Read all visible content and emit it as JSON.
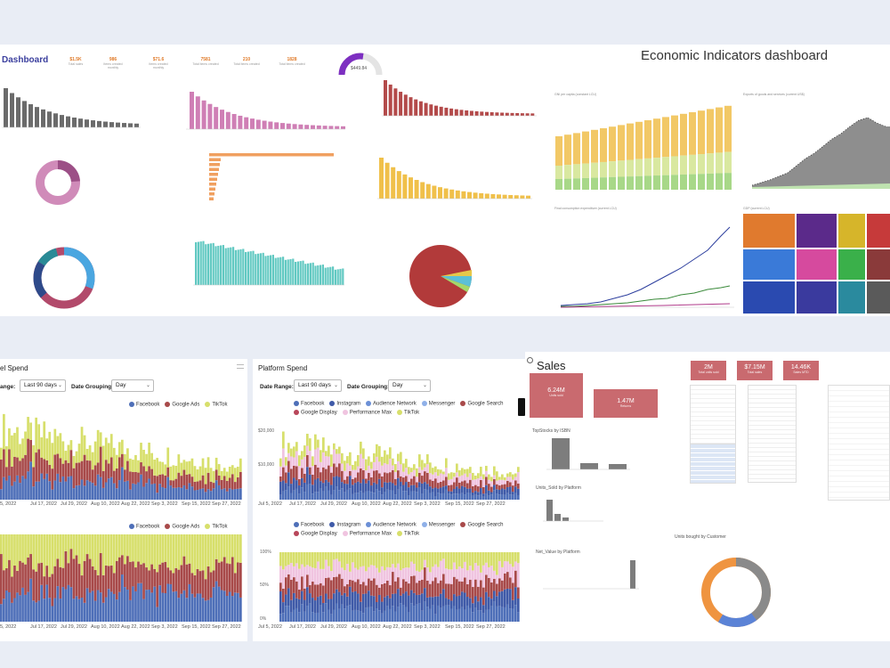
{
  "top_left": {
    "title": "Dashboard",
    "kpis": [
      {
        "value": "$1.5K",
        "label": "Total sales"
      },
      {
        "value": "986",
        "label": "Items created monthly"
      },
      {
        "value": "$71.6",
        "label": "Items created monthly"
      },
      {
        "value": "7581",
        "label": "Total items created"
      },
      {
        "value": "210",
        "label": "Total items created"
      },
      {
        "value": "1828",
        "label": "Total items created"
      }
    ],
    "gauge_label": "$449.84"
  },
  "top_right": {
    "title": "Economic Indicators dashboard",
    "chart_titles": [
      "GNI per capita (constant LCU)",
      "Exports of goods and services (current US$)",
      "Final consumption expenditure (current LCU)",
      "GDP (current LCU)"
    ]
  },
  "channel_spend": {
    "title": "el Spend",
    "range_label": "ange:",
    "range_value": "Last 90 days",
    "grouping_label": "Date Grouping:",
    "grouping_value": "Day",
    "legend": [
      {
        "name": "Facebook",
        "color": "#4e6fb8"
      },
      {
        "name": "Google Ads",
        "color": "#a84a4a"
      },
      {
        "name": "TikTok",
        "color": "#d7df6b"
      }
    ],
    "x_ticks_top": [
      "5, 2022",
      "Jul 17, 2022",
      "Jul 29, 2022",
      "Aug 10, 2022",
      "Aug 22, 2022",
      "Sep 3, 2022",
      "Sep 15, 2022",
      "Sep 27, 2022"
    ],
    "x_ticks_bottom": [
      "5, 2022",
      "Jul 17, 2022",
      "Jul 29, 2022",
      "Aug 10, 2022",
      "Aug 22, 2022",
      "Sep 3, 2022",
      "Sep 15, 2022",
      "Sep 27, 2022"
    ]
  },
  "platform_spend": {
    "title": "Platform Spend",
    "range_label": "Date Range:",
    "range_value": "Last 90 days",
    "grouping_label": "Date Grouping:",
    "grouping_value": "Day",
    "legend": [
      {
        "name": "Facebook",
        "color": "#4e6fb8"
      },
      {
        "name": "Instagram",
        "color": "#3f5aa8"
      },
      {
        "name": "Audience Network",
        "color": "#6b8fd6"
      },
      {
        "name": "Messenger",
        "color": "#8fb0e8"
      },
      {
        "name": "Google Search",
        "color": "#a84a4a"
      },
      {
        "name": "Google Display",
        "color": "#b8465a"
      },
      {
        "name": "Performance Max",
        "color": "#f0c4e0"
      },
      {
        "name": "TikTok",
        "color": "#d7df6b"
      }
    ],
    "y_ticks_top": [
      "$20,000",
      "$10,000",
      "$0"
    ],
    "y_ticks_bottom": [
      "100%",
      "50%",
      "0%"
    ],
    "x_ticks": [
      "Jul 5, 2022",
      "Jul 17, 2022",
      "Jul 29, 2022",
      "Aug 10, 2022",
      "Aug 22, 2022",
      "Sep 3, 2022",
      "Sep 15, 2022",
      "Sep 27, 2022"
    ]
  },
  "sales": {
    "title": "Sales",
    "cards": [
      {
        "value": "2M",
        "label": "Total units sold"
      },
      {
        "value": "$7.15M",
        "label": "Total sales"
      },
      {
        "value": "14.46K",
        "label": "Sales MTD"
      },
      {
        "value": "6.24M",
        "label": "Units sold"
      },
      {
        "value": "1.47M",
        "label": "Returns"
      }
    ],
    "subtitles": [
      "TopStocks by ISBN",
      "Units_Sold by Platform",
      "Net_Value by Platform",
      "Units bought by Customer"
    ]
  }
}
